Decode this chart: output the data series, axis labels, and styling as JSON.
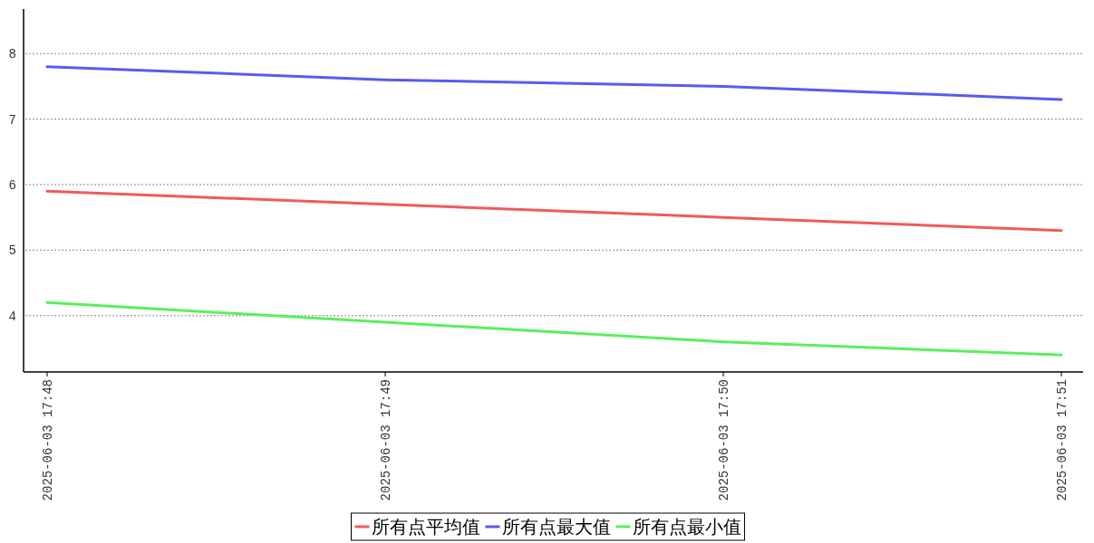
{
  "chart_data": {
    "type": "line",
    "categories": [
      "2025-06-03 17:48",
      "2025-06-03 17:49",
      "2025-06-03 17:50",
      "2025-06-03 17:51"
    ],
    "series": [
      {
        "name": "所有点平均值",
        "color": "#f05a5a",
        "values": [
          5.9,
          5.7,
          5.5,
          5.3
        ]
      },
      {
        "name": "所有点最大值",
        "color": "#5a5af0",
        "values": [
          7.8,
          7.6,
          7.5,
          7.3
        ]
      },
      {
        "name": "所有点最小值",
        "color": "#5af05a",
        "values": [
          4.2,
          3.9,
          3.6,
          3.4
        ]
      }
    ],
    "ylim": [
      3.14,
      8.68
    ],
    "yticks": [
      4,
      5,
      6,
      7,
      8
    ],
    "grid": "y",
    "legend": "bottom",
    "marker": "none",
    "line_style": "solid"
  }
}
